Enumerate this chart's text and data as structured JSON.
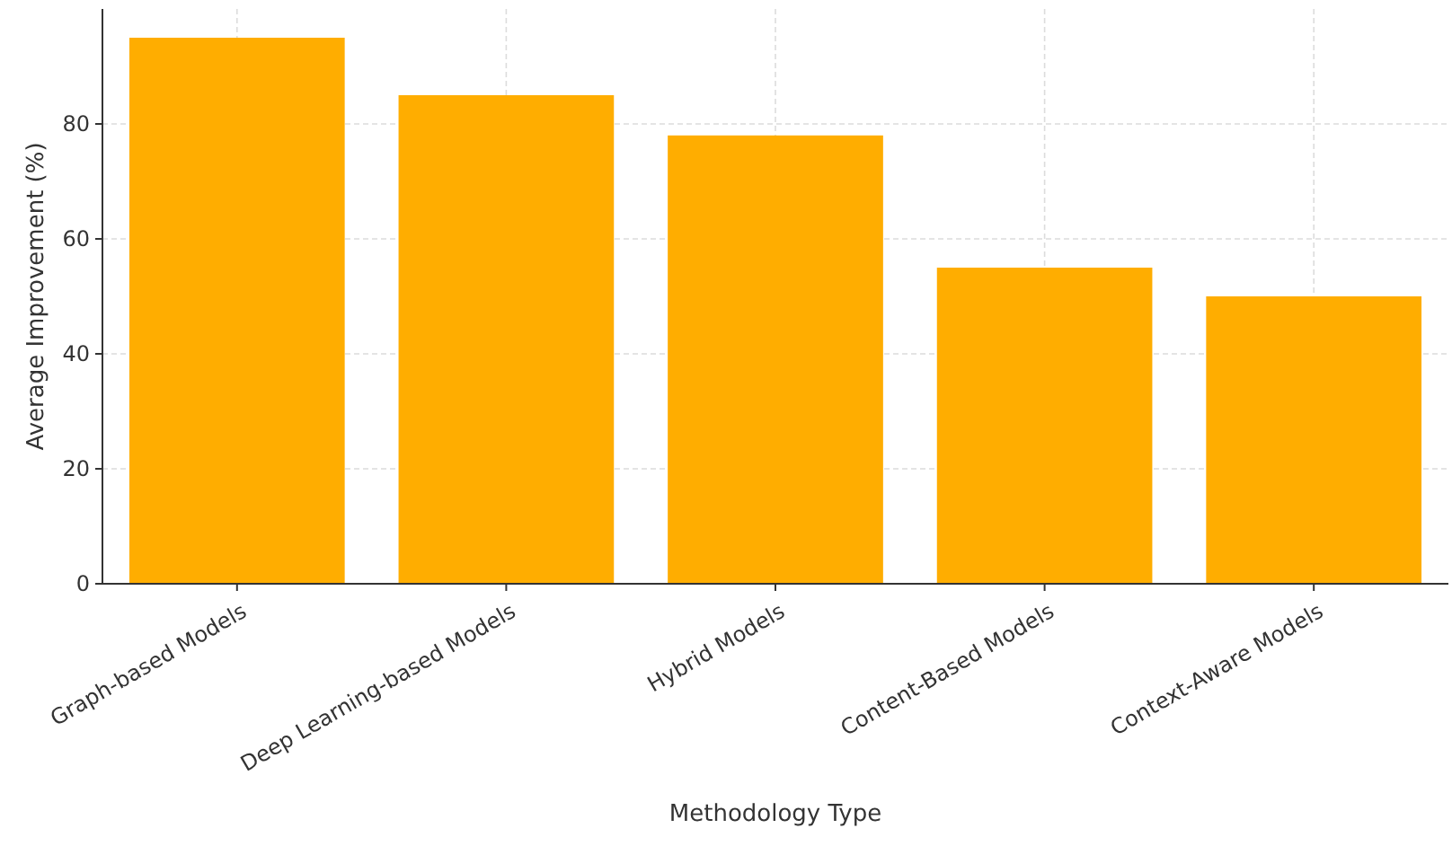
{
  "chart_data": {
    "type": "bar",
    "xlabel": "Methodology Type",
    "ylabel": "Average Improvement (%)",
    "categories": [
      "Graph-based Models",
      "Deep Learning-based Models",
      "Hybrid Models",
      "Content-Based Models",
      "Context-Aware Models"
    ],
    "values": [
      95,
      85,
      78,
      55,
      50
    ],
    "color": "#ffad00",
    "ylim": [
      0,
      100
    ],
    "yticks": [
      0,
      20,
      40,
      60,
      80
    ],
    "grid": true
  }
}
